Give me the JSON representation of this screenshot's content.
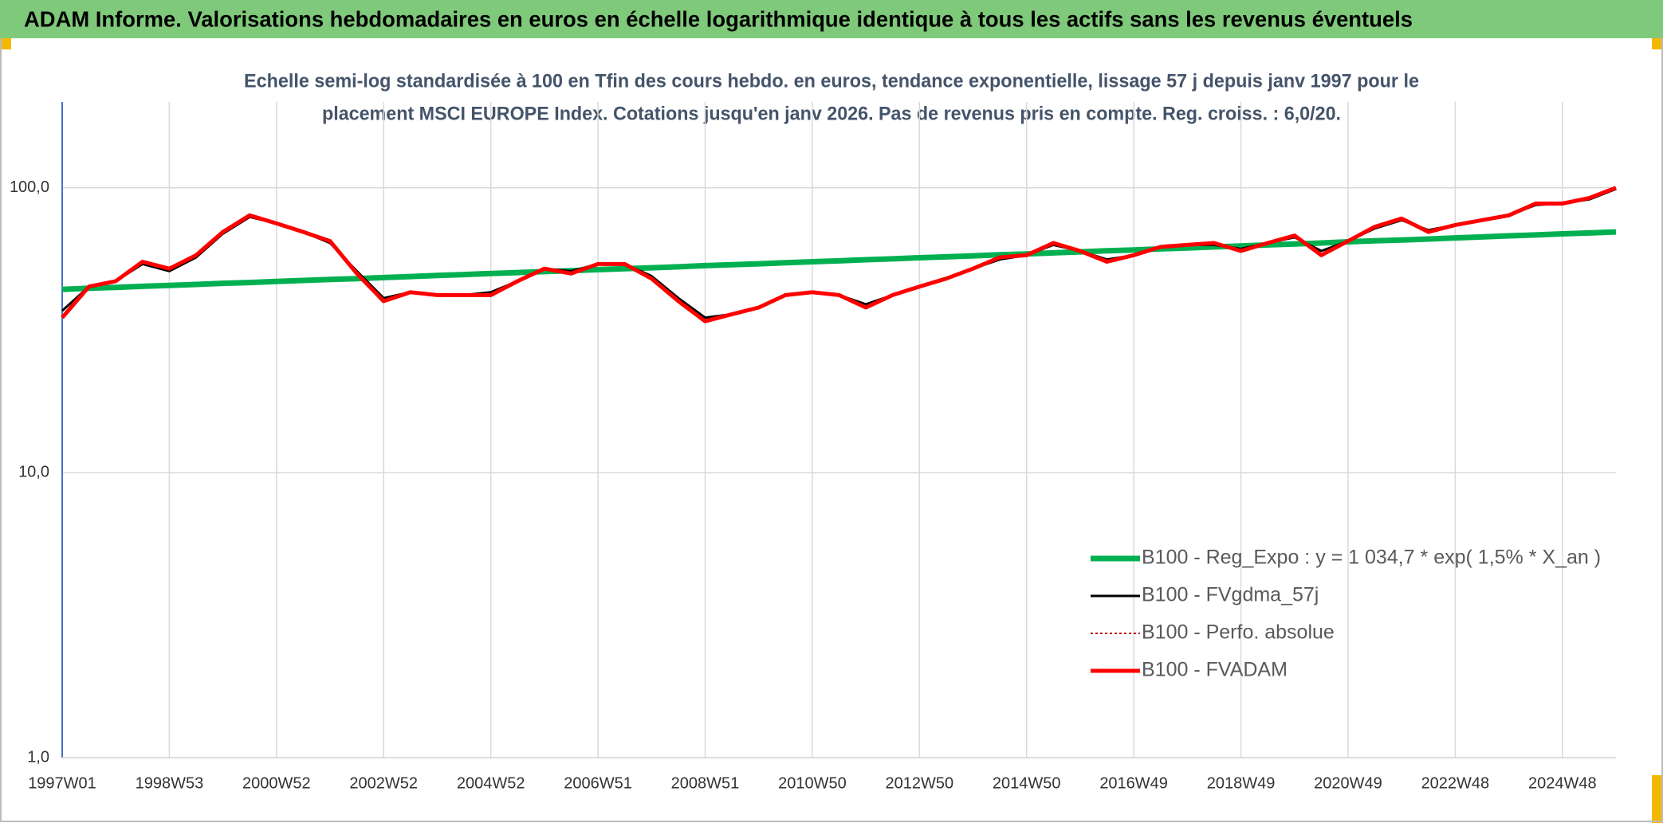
{
  "chart_data": {
    "type": "line",
    "title": "ADAM Informe. Valorisations hebdomadaires en euros en échelle logarithmique identique à tous les actifs sans les revenus éventuels",
    "subtitle": [
      "Echelle semi-log standardisée à 100 en Tfin des cours hebdo. en euros, tendance exponentielle, lissage 57 j depuis janv 1997 pour le",
      "placement MSCI EUROPE Index. Cotations jusqu'en janv 2026. Pas de revenus pris en compte. Reg. croiss. : 6,0/20."
    ],
    "categories": [
      "1997W01",
      null,
      null,
      null,
      "1998W53",
      null,
      null,
      null,
      "2000W52",
      null,
      null,
      null,
      "2002W52",
      null,
      null,
      null,
      "2004W52",
      null,
      null,
      null,
      "2006W51",
      null,
      null,
      null,
      "2008W51",
      null,
      null,
      null,
      "2010W50",
      null,
      null,
      null,
      "2012W50",
      null,
      null,
      null,
      "2014W50",
      null,
      null,
      null,
      "2016W49",
      null,
      null,
      null,
      "2018W49",
      null,
      null,
      null,
      "2020W49",
      null,
      null,
      null,
      "2022W48",
      null,
      null,
      null,
      "2024W48",
      null,
      null
    ],
    "log_scale": true,
    "grid": true,
    "ylim": [
      1,
      200
    ],
    "yticks": [
      {
        "value": 1,
        "label": "1,0"
      },
      {
        "value": 10,
        "label": "10,0"
      },
      {
        "value": 100,
        "label": "100,0"
      }
    ],
    "legend_position": "right",
    "series": [
      {
        "name": "B100 - Reg_Expo : y = 1 034,7 * exp( 1,5% *  X_an )",
        "color": "#00b050",
        "width": 7,
        "dash": "none",
        "values": [
          44,
          44.4,
          44.7,
          45.1,
          45.4,
          45.8,
          46.2,
          46.5,
          46.9,
          47.3,
          47.7,
          48.0,
          48.4,
          48.8,
          49.2,
          49.6,
          50.0,
          50.4,
          50.8,
          51.2,
          51.6,
          52.0,
          52.4,
          52.8,
          53.3,
          53.7,
          54.1,
          54.6,
          55.0,
          55.4,
          55.9,
          56.3,
          56.8,
          57.2,
          57.7,
          58.2,
          58.6,
          59.1,
          59.6,
          60.1,
          60.5,
          61.0,
          61.5,
          62.0,
          62.5,
          63.0,
          63.5,
          64.0,
          64.6,
          65.1,
          65.6,
          66.1,
          66.7,
          67.2,
          67.8,
          68.3,
          68.9,
          69.4,
          70.0
        ]
      },
      {
        "name": "B100 - FVgdma_57j",
        "color": "#000000",
        "width": 3,
        "dash": "none",
        "values": [
          37,
          45,
          47,
          54,
          51,
          57,
          69,
          79,
          75,
          70,
          64,
          51,
          41,
          43,
          42,
          42,
          43,
          47,
          52,
          51,
          54,
          54,
          49,
          41,
          35,
          36,
          38,
          42,
          43,
          42,
          39,
          42,
          45,
          48,
          52,
          56,
          58,
          63,
          60,
          56,
          58,
          62,
          63,
          63,
          61,
          64,
          67,
          60,
          65,
          72,
          77,
          71,
          74,
          77,
          80,
          87,
          88,
          91,
          99
        ]
      },
      {
        "name": "B100 - Perfo. absolue",
        "color": "#c00000",
        "width": 2,
        "dash": "3,3",
        "values": [
          35,
          45,
          47,
          55,
          52,
          58,
          70,
          80,
          75,
          70,
          65,
          50,
          40,
          43,
          42,
          42,
          42,
          47,
          52,
          50,
          54,
          54,
          48,
          40,
          34,
          36,
          38,
          42,
          43,
          42,
          38,
          42,
          45,
          48,
          52,
          57,
          58,
          64,
          60,
          55,
          58,
          62,
          63,
          64,
          60,
          64,
          68,
          58,
          65,
          73,
          78,
          70,
          74,
          77,
          80,
          88,
          88,
          92,
          100
        ]
      },
      {
        "name": "B100 - FVADAM",
        "color": "#ff0000",
        "width": 5,
        "dash": "none",
        "values": [
          35,
          45,
          47,
          55,
          52,
          58,
          70,
          80,
          75,
          70,
          65,
          50,
          40,
          43,
          42,
          42,
          42,
          47,
          52,
          50,
          54,
          54,
          48,
          40,
          34,
          36,
          38,
          42,
          43,
          42,
          38,
          42,
          45,
          48,
          52,
          57,
          58,
          64,
          60,
          55,
          58,
          62,
          63,
          64,
          60,
          64,
          68,
          58,
          65,
          73,
          78,
          70,
          74,
          77,
          80,
          88,
          88,
          92,
          100
        ]
      }
    ]
  }
}
